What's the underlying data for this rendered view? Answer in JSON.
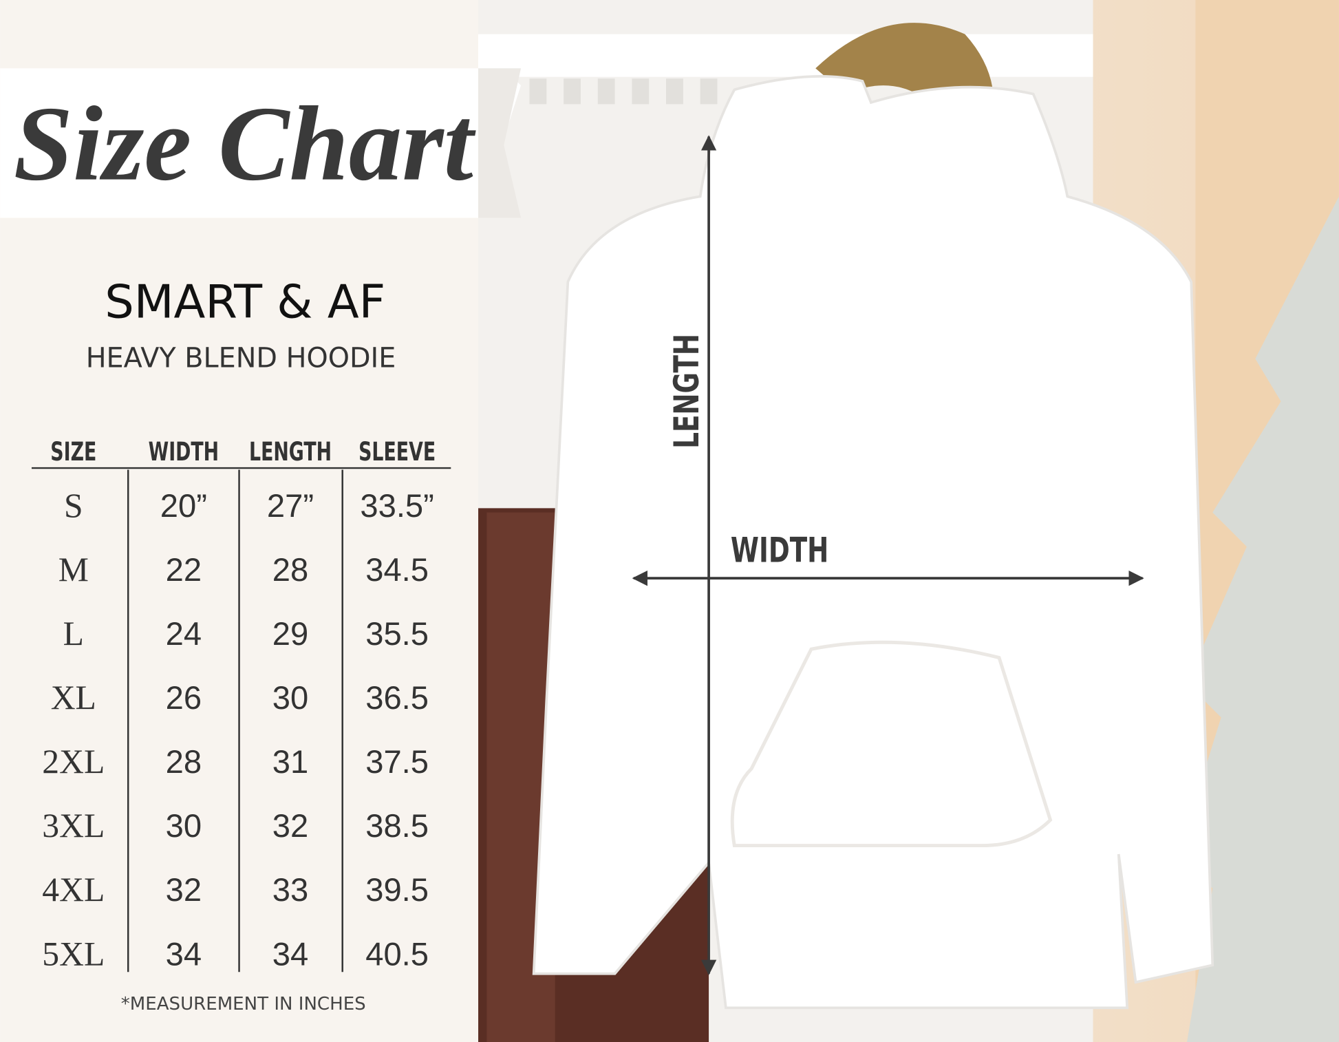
{
  "header": {
    "title": "Size Chart",
    "brand": "SMART &  AF",
    "product": "HEAVY BLEND HOODIE"
  },
  "table": {
    "columns": [
      "SIZE",
      "WIDTH",
      "LENGTH",
      "SLEEVE"
    ],
    "rows": [
      [
        "S",
        "20”",
        "27”",
        "33.5”"
      ],
      [
        "M",
        "22",
        "28",
        "34.5"
      ],
      [
        "L",
        "24",
        "29",
        "35.5"
      ],
      [
        "XL",
        "26",
        "30",
        "36.5"
      ],
      [
        "2XL",
        "28",
        "31",
        "37.5"
      ],
      [
        "3XL",
        "30",
        "32",
        "38.5"
      ],
      [
        "4XL",
        "32",
        "33",
        "39.5"
      ],
      [
        "5XL",
        "34",
        "34",
        "40.5"
      ]
    ]
  },
  "footnote": "*MEASUREMENT IN INCHES",
  "diagram": {
    "length_label": "LENGTH",
    "width_label": "WIDTH"
  }
}
